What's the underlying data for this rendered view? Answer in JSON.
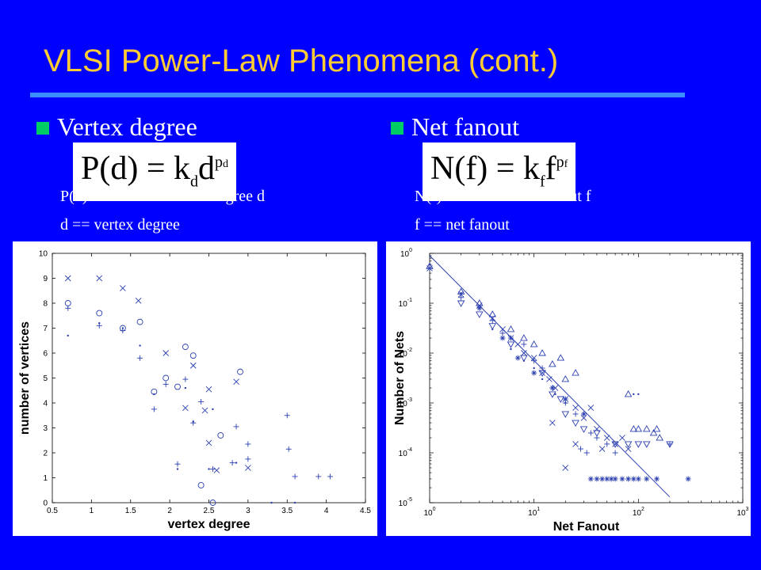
{
  "slide": {
    "title": "VLSI Power-Law Phenomena (cont.)"
  },
  "left": {
    "heading": "Vertex degree",
    "formula": {
      "lhs": "P(d)",
      "eq": "=",
      "k": "k",
      "k_sub": "d",
      "base": "d",
      "exp": "p",
      "exp_sub": "d"
    },
    "def1": "P(d) == # vertices with degree d",
    "def2": "d == vertex degree"
  },
  "right": {
    "heading": "Net fanout",
    "formula": {
      "lhs": "N(f)",
      "eq": "=",
      "k": "k",
      "k_sub": "f",
      "base": "f",
      "exp": "p",
      "exp_sub": "f"
    },
    "def1": "N(f) == # nets with fanout f",
    "def2": "f == net fanout"
  },
  "chart_data": [
    {
      "type": "scatter",
      "xlabel": "vertex degree",
      "ylabel": "number of vertices",
      "xlim": [
        0.5,
        4.5
      ],
      "ylim": [
        0,
        10
      ],
      "xticks": [
        "0.5",
        "1",
        "1.5",
        "2",
        "2.5",
        "3",
        "3.5",
        "4",
        "4.5"
      ],
      "yticks": [
        "0",
        "1",
        "2",
        "3",
        "4",
        "5",
        "6",
        "7",
        "8",
        "9",
        "10"
      ],
      "grid": false,
      "series": [
        {
          "marker": "x",
          "points": [
            [
              0.7,
              9.0
            ],
            [
              1.1,
              9.0
            ],
            [
              1.4,
              8.6
            ],
            [
              1.6,
              8.1
            ],
            [
              1.95,
              6.0
            ],
            [
              2.3,
              5.5
            ],
            [
              2.5,
              4.55
            ],
            [
              2.85,
              4.85
            ],
            [
              2.45,
              3.7
            ],
            [
              2.2,
              3.8
            ],
            [
              2.6,
              1.3
            ],
            [
              3.0,
              1.4
            ],
            [
              2.5,
              2.4
            ]
          ]
        },
        {
          "marker": "circle",
          "points": [
            [
              0.7,
              8.0
            ],
            [
              1.1,
              7.6
            ],
            [
              1.4,
              7.0
            ],
            [
              1.62,
              7.25
            ],
            [
              1.8,
              4.45
            ],
            [
              1.95,
              5.0
            ],
            [
              2.1,
              4.65
            ],
            [
              2.2,
              6.25
            ],
            [
              2.3,
              5.9
            ],
            [
              2.4,
              0.7
            ],
            [
              2.55,
              0.0
            ],
            [
              2.65,
              2.7
            ],
            [
              2.9,
              5.25
            ]
          ]
        },
        {
          "marker": "plus",
          "points": [
            [
              0.7,
              7.8
            ],
            [
              1.1,
              7.1
            ],
            [
              1.4,
              6.9
            ],
            [
              1.62,
              5.8
            ],
            [
              1.8,
              3.75
            ],
            [
              1.95,
              4.75
            ],
            [
              2.1,
              1.55
            ],
            [
              2.2,
              4.95
            ],
            [
              2.3,
              3.2
            ],
            [
              2.4,
              4.05
            ],
            [
              2.55,
              1.35
            ],
            [
              2.8,
              1.6
            ],
            [
              2.85,
              3.05
            ],
            [
              3.0,
              1.75
            ],
            [
              3.0,
              2.35
            ],
            [
              3.5,
              3.5
            ],
            [
              3.52,
              2.15
            ],
            [
              3.6,
              1.05
            ],
            [
              3.9,
              1.05
            ],
            [
              4.05,
              1.05
            ]
          ]
        },
        {
          "marker": "dot",
          "points": [
            [
              0.7,
              6.7
            ],
            [
              1.1,
              7.2
            ],
            [
              1.4,
              7.0
            ],
            [
              1.62,
              6.3
            ],
            [
              1.8,
              4.35
            ],
            [
              2.1,
              1.35
            ],
            [
              2.2,
              4.6
            ],
            [
              2.3,
              3.25
            ],
            [
              2.5,
              1.35
            ],
            [
              2.55,
              3.75
            ],
            [
              2.85,
              1.6
            ],
            [
              3.3,
              0.0
            ],
            [
              3.6,
              0.0
            ]
          ]
        }
      ]
    },
    {
      "type": "scatter",
      "xlabel": "Net Fanout",
      "ylabel": "Number of Nets",
      "xscale": "log",
      "yscale": "log",
      "xlim": [
        1,
        1000
      ],
      "ylim": [
        1e-05,
        1
      ],
      "xticks": [
        "10^0",
        "10^1",
        "10^2",
        "10^3"
      ],
      "yticks": [
        "10^-5",
        "10^-4",
        "10^-3",
        "10^-2",
        "10^-1",
        "10^0"
      ],
      "grid": false,
      "fit_line": [
        [
          1,
          0.9
        ],
        [
          200,
          1.3e-05
        ]
      ],
      "series": [
        {
          "marker": "x",
          "points": [
            [
              1,
              0.5
            ],
            [
              2,
              0.15
            ],
            [
              3,
              0.09
            ],
            [
              4,
              0.05
            ],
            [
              5,
              0.03
            ],
            [
              6,
              0.02
            ],
            [
              7,
              0.015
            ],
            [
              8,
              0.01
            ],
            [
              10,
              0.008
            ],
            [
              12,
              0.004
            ],
            [
              14,
              0.003
            ],
            [
              16,
              0.002
            ],
            [
              20,
              0.0012
            ],
            [
              25,
              0.0008
            ],
            [
              30,
              0.0005
            ],
            [
              40,
              0.0003
            ],
            [
              50,
              0.0002
            ],
            [
              60,
              0.00015
            ],
            [
              80,
              0.00012
            ],
            [
              25,
              0.00015
            ],
            [
              15,
              0.0004
            ],
            [
              35,
              0.0008
            ],
            [
              45,
              0.00012
            ],
            [
              70,
              0.0002
            ],
            [
              20,
              5e-05
            ]
          ]
        },
        {
          "marker": "triangle",
          "points": [
            [
              1,
              0.55
            ],
            [
              2,
              0.17
            ],
            [
              3,
              0.1
            ],
            [
              4,
              0.06
            ],
            [
              6,
              0.03
            ],
            [
              8,
              0.02
            ],
            [
              10,
              0.015
            ],
            [
              12,
              0.01
            ],
            [
              15,
              0.006
            ],
            [
              20,
              0.003
            ],
            [
              18,
              0.008
            ],
            [
              25,
              0.004
            ],
            [
              80,
              0.0015
            ],
            [
              90,
              0.0003
            ],
            [
              100,
              0.0003
            ],
            [
              120,
              0.0003
            ],
            [
              150,
              0.0003
            ],
            [
              140,
              0.00025
            ],
            [
              160,
              0.0002
            ]
          ]
        },
        {
          "marker": "triangle-down",
          "points": [
            [
              2,
              0.1
            ],
            [
              3,
              0.06
            ],
            [
              4,
              0.035
            ],
            [
              6,
              0.015
            ],
            [
              8,
              0.008
            ],
            [
              12,
              0.004
            ],
            [
              15,
              0.0015
            ],
            [
              18,
              0.0012
            ],
            [
              20,
              0.0006
            ],
            [
              25,
              0.0004
            ],
            [
              30,
              0.0003
            ],
            [
              40,
              0.00025
            ],
            [
              60,
              0.00015
            ],
            [
              80,
              0.00015
            ],
            [
              100,
              0.00015
            ],
            [
              120,
              0.00015
            ],
            [
              200,
              0.00015
            ]
          ]
        },
        {
          "marker": "plus",
          "points": [
            [
              1,
              0.5
            ],
            [
              2,
              0.13
            ],
            [
              3,
              0.08
            ],
            [
              4,
              0.045
            ],
            [
              5,
              0.025
            ],
            [
              6,
              0.02
            ],
            [
              8,
              0.015
            ],
            [
              10,
              0.007
            ],
            [
              12,
              0.005
            ],
            [
              15,
              0.002
            ],
            [
              20,
              0.001
            ],
            [
              25,
              0.0006
            ],
            [
              28,
              0.00012
            ],
            [
              32,
              0.0001
            ],
            [
              35,
              0.00025
            ],
            [
              40,
              0.0002
            ],
            [
              50,
              0.00015
            ],
            [
              60,
              0.0001
            ],
            [
              200,
              0.00015
            ]
          ]
        },
        {
          "marker": "dot",
          "points": [
            [
              1,
              0.6
            ],
            [
              2,
              0.16
            ],
            [
              4,
              0.03
            ],
            [
              6,
              0.012
            ],
            [
              8,
              0.007
            ],
            [
              10,
              0.005
            ],
            [
              12,
              0.003
            ],
            [
              16,
              0.0015
            ],
            [
              20,
              0.001
            ],
            [
              90,
              0.0015
            ],
            [
              100,
              0.0015
            ]
          ]
        },
        {
          "marker": "star",
          "points": [
            [
              3,
              0.08
            ],
            [
              5,
              0.02
            ],
            [
              7,
              0.008
            ],
            [
              10,
              0.004
            ],
            [
              15,
              0.002
            ],
            [
              20,
              0.0012
            ],
            [
              30,
              0.0006
            ],
            [
              35,
              3e-05
            ],
            [
              40,
              3e-05
            ],
            [
              45,
              3e-05
            ],
            [
              50,
              3e-05
            ],
            [
              55,
              3e-05
            ],
            [
              60,
              3e-05
            ],
            [
              70,
              3e-05
            ],
            [
              80,
              3e-05
            ],
            [
              90,
              3e-05
            ],
            [
              100,
              3e-05
            ],
            [
              120,
              3e-05
            ],
            [
              150,
              3e-05
            ],
            [
              300,
              3e-05
            ]
          ]
        }
      ]
    }
  ]
}
